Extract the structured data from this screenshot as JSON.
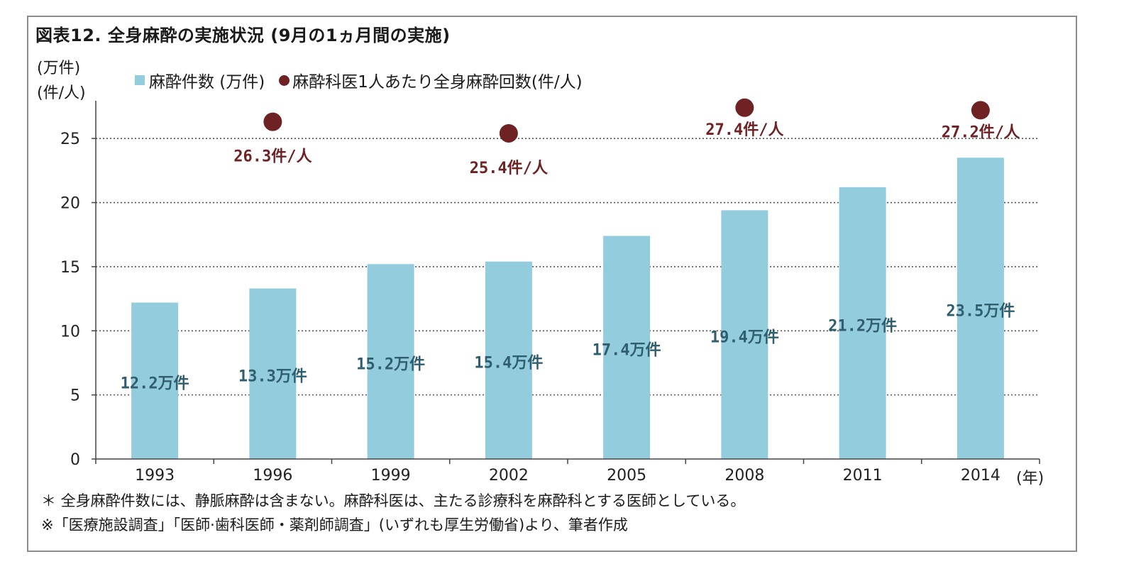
{
  "title": "図表12. 全身麻酔の実施状況 (9月の1ヵ月間の実施)",
  "units": {
    "line1": "(万件)",
    "line2": "(件/人)",
    "x_unit": "(年)"
  },
  "legend": {
    "bar_label": "麻酔件数 (万件)",
    "dot_label": "麻酔科医1人あたり全身麻酔回数(件/人)"
  },
  "footnotes": {
    "note1": "＊ 全身麻酔件数には、静脈麻酔は含まない。麻酔科医は、主たる診療科を麻酔科とする医師としている。",
    "note2": "※「医療施設調査」「医師·歯科医師・薬剤師調査」(いずれも厚生労働省)より、筆者作成"
  },
  "colors": {
    "bar": "#93ccdd",
    "dot": "#6e2224",
    "bar_label": "#2f5f6e",
    "grid": "#555555"
  },
  "chart_data": {
    "type": "bar",
    "categories": [
      "1993",
      "1996",
      "1999",
      "2002",
      "2005",
      "2008",
      "2011",
      "2014"
    ],
    "ylim": [
      0,
      27.5
    ],
    "yticks": [
      0,
      5,
      10,
      15,
      20,
      25
    ],
    "grid": "horizontal-dotted",
    "legend_position": "top",
    "series": [
      {
        "type": "bar",
        "values": [
          12.2,
          13.3,
          15.2,
          15.4,
          17.4,
          19.4,
          21.2,
          23.5
        ],
        "labels": [
          "12.2万件",
          "13.3万件",
          "15.2万件",
          "15.4万件",
          "17.4万件",
          "19.4万件",
          "21.2万件",
          "23.5万件"
        ]
      },
      {
        "type": "scatter",
        "points": [
          {
            "x": "1996",
            "y": 26.3,
            "label": "26.3件/人"
          },
          {
            "x": "2002",
            "y": 25.4,
            "label": "25.4件/人"
          },
          {
            "x": "2008",
            "y": 27.4,
            "label": "27.4件/人"
          },
          {
            "x": "2014",
            "y": 27.2,
            "label": "27.2件/人"
          }
        ]
      }
    ]
  }
}
